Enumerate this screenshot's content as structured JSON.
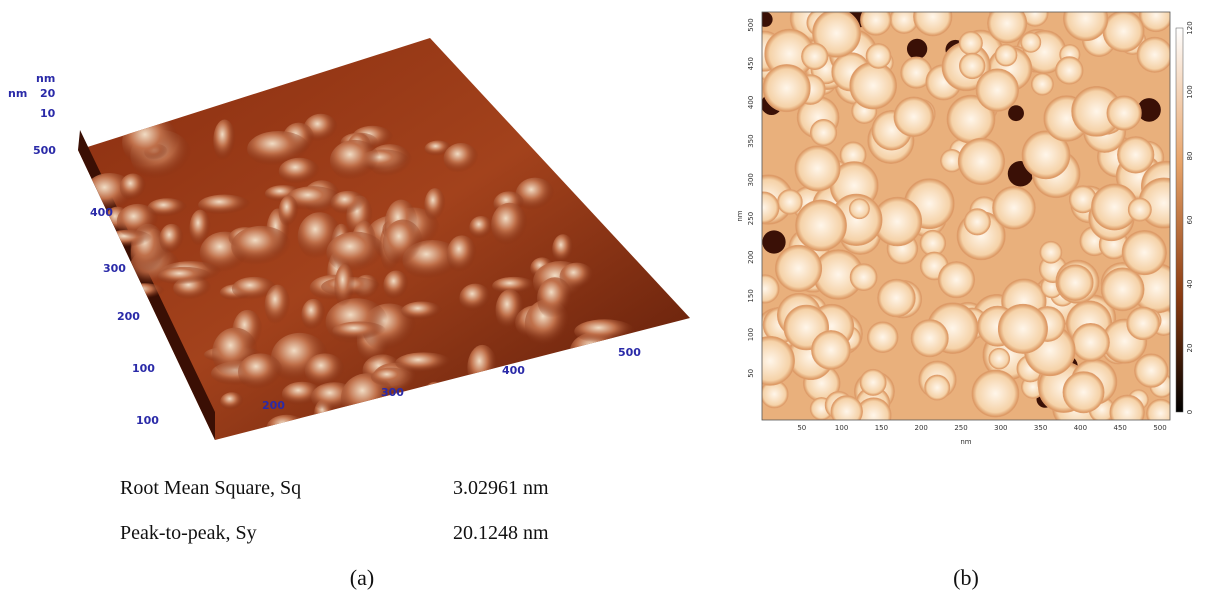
{
  "panels": [
    {
      "label": "(a)",
      "z_unit": "nm",
      "xy_unit": "nm",
      "z_ticks": [
        "20",
        "10"
      ],
      "y_ticks": [
        "500",
        "400",
        "300",
        "200",
        "100"
      ],
      "x_ticks": [
        "100",
        "200",
        "300",
        "400",
        "500"
      ],
      "stats": [
        [
          "Root Mean Square, Sq",
          "3.02961 nm"
        ],
        [
          "Peak-to-peak, Sy",
          "20.1248 nm"
        ]
      ]
    },
    {
      "label": "(b)",
      "y_label": "nm",
      "x_label": "nm",
      "y_ticks": [
        "50",
        "100",
        "150",
        "200",
        "250",
        "300",
        "350",
        "400",
        "450",
        "500"
      ],
      "x_ticks": [
        "50",
        "100",
        "150",
        "200",
        "250",
        "300",
        "350",
        "400",
        "450",
        "500"
      ],
      "colorbar_ticks": [
        "0",
        "20",
        "40",
        "60",
        "80",
        "100",
        "120"
      ]
    }
  ]
}
